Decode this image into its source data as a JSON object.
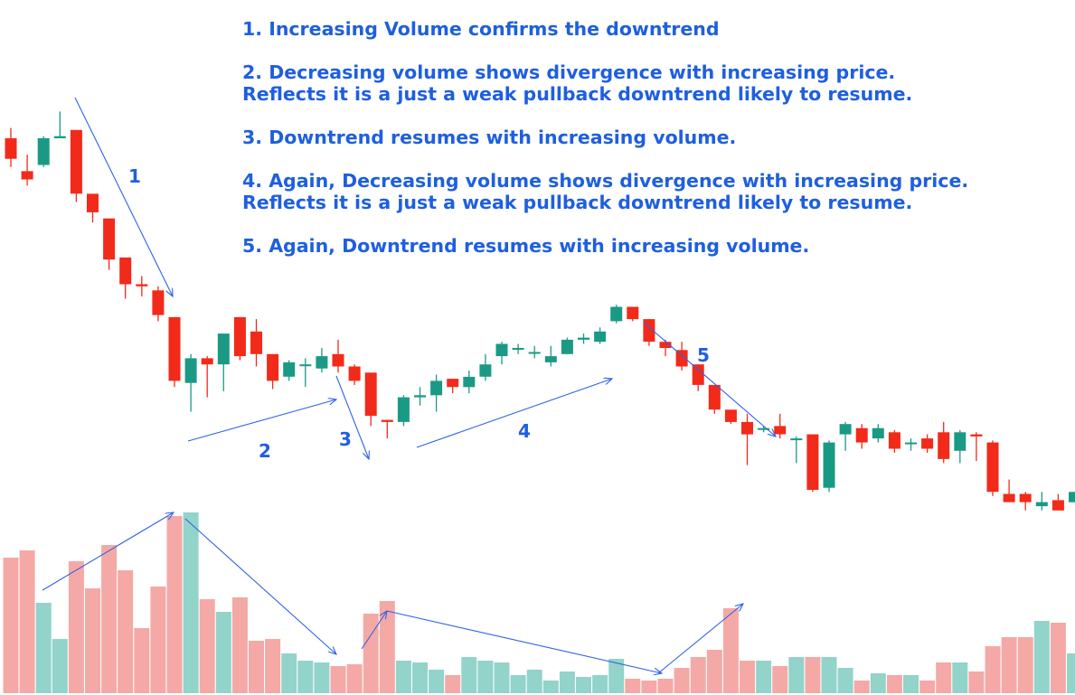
{
  "colors": {
    "up_candle": "#1a9a85",
    "down_candle": "#f22a1a",
    "up_volume": "#92d3ca",
    "down_volume": "#f4a9a6",
    "annotation": "#2f62e8",
    "text": "#1e5fe0"
  },
  "notes": [
    "1. Increasing Volume confirms the downtrend",
    "2. Decreasing volume shows divergence with increasing price.\nReflects it is a just a weak pullback downtrend likely to resume.",
    "3. Downtrend resumes with increasing volume.",
    "4. Again, Decreasing volume shows divergence with increasing price.\nReflects it is a just a weak pullback downtrend likely to resume.",
    "5. Again, Downtrend resumes with increasing volume."
  ],
  "wave_labels": [
    "1",
    "2",
    "3",
    "4",
    "5"
  ],
  "chart_data": {
    "type": "candlestick",
    "title": "",
    "xlabel": "",
    "ylabel": "",
    "price_range": [
      0,
      100
    ],
    "volume_range": [
      0,
      100
    ],
    "grid": false,
    "candles": [
      {
        "o": 91.0,
        "h": 93.5,
        "l": 84.0,
        "c": 86.0,
        "v": 75
      },
      {
        "o": 83.0,
        "h": 87.0,
        "l": 79.5,
        "c": 81.0,
        "v": 79
      },
      {
        "o": 84.5,
        "h": 91.5,
        "l": 84.0,
        "c": 91.0,
        "v": 50
      },
      {
        "o": 91.0,
        "h": 97.5,
        "l": 91.0,
        "c": 91.5,
        "v": 30
      },
      {
        "o": 93.0,
        "h": 93.0,
        "l": 75.5,
        "c": 77.5,
        "v": 73
      },
      {
        "o": 77.5,
        "h": 77.5,
        "l": 70.5,
        "c": 73.0,
        "v": 58
      },
      {
        "o": 71.5,
        "h": 71.5,
        "l": 59.0,
        "c": 61.5,
        "v": 82
      },
      {
        "o": 62.0,
        "h": 62.0,
        "l": 52.0,
        "c": 55.5,
        "v": 68
      },
      {
        "o": 55.5,
        "h": 57.5,
        "l": 52.5,
        "c": 55.0,
        "v": 36
      },
      {
        "o": 54.0,
        "h": 55.0,
        "l": 46.5,
        "c": 48.0,
        "v": 59
      },
      {
        "o": 47.5,
        "h": 47.5,
        "l": 30.5,
        "c": 32.0,
        "v": 98
      },
      {
        "o": 31.5,
        "h": 38.5,
        "l": 24.5,
        "c": 37.5,
        "v": 100
      },
      {
        "o": 37.5,
        "h": 38.0,
        "l": 28.0,
        "c": 36.0,
        "v": 52
      },
      {
        "o": 36.0,
        "h": 43.5,
        "l": 29.5,
        "c": 43.5,
        "v": 45
      },
      {
        "o": 47.5,
        "h": 47.5,
        "l": 37.0,
        "c": 38.0,
        "v": 53
      },
      {
        "o": 44.0,
        "h": 47.0,
        "l": 35.5,
        "c": 38.5,
        "v": 29
      },
      {
        "o": 38.5,
        "h": 38.5,
        "l": 30.0,
        "c": 32.0,
        "v": 30
      },
      {
        "o": 33.0,
        "h": 37.0,
        "l": 32.0,
        "c": 36.5,
        "v": 22
      },
      {
        "o": 36.0,
        "h": 37.5,
        "l": 30.5,
        "c": 36.0,
        "v": 18
      },
      {
        "o": 35.0,
        "h": 40.0,
        "l": 34.0,
        "c": 38.0,
        "v": 17
      },
      {
        "o": 38.5,
        "h": 42.0,
        "l": 34.0,
        "c": 35.5,
        "v": 15
      },
      {
        "o": 35.5,
        "h": 36.0,
        "l": 31.0,
        "c": 32.0,
        "v": 16
      },
      {
        "o": 34.0,
        "h": 34.0,
        "l": 21.0,
        "c": 23.5,
        "v": 44
      },
      {
        "o": 22.5,
        "h": 22.5,
        "l": 18.0,
        "c": 22.0,
        "v": 51
      },
      {
        "o": 22.0,
        "h": 28.5,
        "l": 21.0,
        "c": 28.0,
        "v": 18
      },
      {
        "o": 28.0,
        "h": 30.5,
        "l": 26.0,
        "c": 28.5,
        "v": 17
      },
      {
        "o": 28.5,
        "h": 33.5,
        "l": 24.5,
        "c": 32.0,
        "v": 13
      },
      {
        "o": 32.5,
        "h": 32.5,
        "l": 29.0,
        "c": 30.5,
        "v": 10
      },
      {
        "o": 30.5,
        "h": 34.5,
        "l": 29.0,
        "c": 33.0,
        "v": 20
      },
      {
        "o": 33.0,
        "h": 38.5,
        "l": 32.0,
        "c": 36.0,
        "v": 18
      },
      {
        "o": 38.0,
        "h": 41.5,
        "l": 36.0,
        "c": 41.0,
        "v": 17
      },
      {
        "o": 40.0,
        "h": 41.0,
        "l": 38.5,
        "c": 40.0,
        "v": 10
      },
      {
        "o": 39.0,
        "h": 40.5,
        "l": 37.5,
        "c": 39.0,
        "v": 13
      },
      {
        "o": 36.5,
        "h": 40.5,
        "l": 35.5,
        "c": 38.0,
        "v": 7
      },
      {
        "o": 38.5,
        "h": 42.5,
        "l": 38.5,
        "c": 42.0,
        "v": 12
      },
      {
        "o": 42.0,
        "h": 43.5,
        "l": 41.0,
        "c": 42.5,
        "v": 9
      },
      {
        "o": 41.5,
        "h": 45.0,
        "l": 41.0,
        "c": 44.0,
        "v": 10
      },
      {
        "o": 46.5,
        "h": 50.5,
        "l": 46.0,
        "c": 50.0,
        "v": 19
      },
      {
        "o": 50.0,
        "h": 50.0,
        "l": 46.5,
        "c": 47.0,
        "v": 8
      },
      {
        "o": 47.0,
        "h": 47.0,
        "l": 40.5,
        "c": 41.5,
        "v": 7
      },
      {
        "o": 41.5,
        "h": 42.0,
        "l": 38.0,
        "c": 40.0,
        "v": 8
      },
      {
        "o": 39.5,
        "h": 41.5,
        "l": 34.5,
        "c": 35.5,
        "v": 14
      },
      {
        "o": 36.0,
        "h": 36.0,
        "l": 29.5,
        "c": 31.0,
        "v": 20
      },
      {
        "o": 31.0,
        "h": 31.0,
        "l": 24.0,
        "c": 25.0,
        "v": 24
      },
      {
        "o": 25.0,
        "h": 25.0,
        "l": 21.5,
        "c": 22.0,
        "v": 47
      },
      {
        "o": 22.0,
        "h": 24.0,
        "l": 11.5,
        "c": 19.0,
        "v": 18
      },
      {
        "o": 20.5,
        "h": 21.0,
        "l": 19.5,
        "c": 20.5,
        "v": 18
      },
      {
        "o": 21.0,
        "h": 24.0,
        "l": 18.0,
        "c": 19.0,
        "v": 15
      },
      {
        "o": 18.0,
        "h": 18.5,
        "l": 12.0,
        "c": 18.0,
        "v": 20
      },
      {
        "o": 19.0,
        "h": 19.0,
        "l": 5.0,
        "c": 5.5,
        "v": 20
      },
      {
        "o": 6.0,
        "h": 17.5,
        "l": 5.0,
        "c": 17.0,
        "v": 20
      },
      {
        "o": 19.0,
        "h": 22.0,
        "l": 15.0,
        "c": 21.5,
        "v": 14
      },
      {
        "o": 20.5,
        "h": 21.5,
        "l": 15.5,
        "c": 17.0,
        "v": 7
      },
      {
        "o": 18.0,
        "h": 21.5,
        "l": 17.0,
        "c": 20.5,
        "v": 11
      },
      {
        "o": 19.5,
        "h": 20.0,
        "l": 14.5,
        "c": 15.5,
        "v": 10
      },
      {
        "o": 17.0,
        "h": 18.0,
        "l": 15.0,
        "c": 17.0,
        "v": 10
      },
      {
        "o": 18.0,
        "h": 19.0,
        "l": 14.5,
        "c": 15.5,
        "v": 7
      },
      {
        "o": 19.5,
        "h": 22.0,
        "l": 12.0,
        "c": 13.0,
        "v": 17
      },
      {
        "o": 15.0,
        "h": 20.0,
        "l": 12.0,
        "c": 19.5,
        "v": 17
      },
      {
        "o": 19.0,
        "h": 19.5,
        "l": 12.5,
        "c": 18.5,
        "v": 12
      },
      {
        "o": 17.0,
        "h": 17.5,
        "l": 4.0,
        "c": 5.0,
        "v": 26
      },
      {
        "o": 4.5,
        "h": 8.0,
        "l": 2.5,
        "c": 2.5,
        "v": 31
      },
      {
        "o": 4.5,
        "h": 5.0,
        "l": 0.5,
        "c": 2.5,
        "v": 31
      },
      {
        "o": 1.5,
        "h": 5.0,
        "l": 0.5,
        "c": 2.5,
        "v": 40
      },
      {
        "o": 3.0,
        "h": 4.5,
        "l": 0.5,
        "c": 0.5,
        "v": 39
      },
      {
        "o": 2.5,
        "h": 5.0,
        "l": 2.5,
        "c": 5.0,
        "v": 22
      }
    ]
  }
}
